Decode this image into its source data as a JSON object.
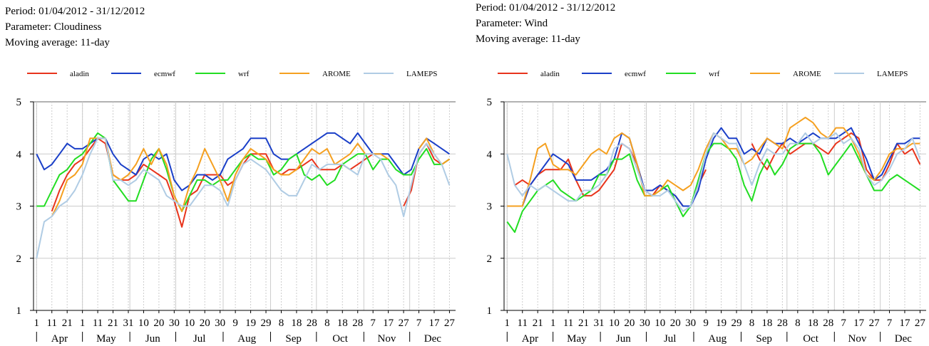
{
  "chart_data": [
    {
      "type": "line",
      "period": "Period: 01/04/2012 - 31/12/2012",
      "parameter": "Parameter: Cloudiness",
      "average": "Moving average: 11-day",
      "x": [
        "2012-04-01",
        "2012-04-06",
        "2012-04-11",
        "2012-04-16",
        "2012-04-21",
        "2012-04-26",
        "2012-05-01",
        "2012-05-06",
        "2012-05-11",
        "2012-05-16",
        "2012-05-21",
        "2012-05-26",
        "2012-05-31",
        "2012-06-05",
        "2012-06-10",
        "2012-06-15",
        "2012-06-20",
        "2012-06-25",
        "2012-06-30",
        "2012-07-05",
        "2012-07-10",
        "2012-07-15",
        "2012-07-20",
        "2012-07-25",
        "2012-07-30",
        "2012-08-04",
        "2012-08-09",
        "2012-08-14",
        "2012-08-19",
        "2012-08-24",
        "2012-08-29",
        "2012-09-03",
        "2012-09-08",
        "2012-09-13",
        "2012-09-18",
        "2012-09-23",
        "2012-09-28",
        "2012-10-03",
        "2012-10-08",
        "2012-10-13",
        "2012-10-18",
        "2012-10-23",
        "2012-10-28",
        "2012-11-02",
        "2012-11-07",
        "2012-11-12",
        "2012-11-17",
        "2012-11-22",
        "2012-11-27",
        "2012-12-02",
        "2012-12-07",
        "2012-12-12",
        "2012-12-17",
        "2012-12-22",
        "2012-12-27"
      ],
      "xlim": [
        "2012-03-30",
        "2012-12-31"
      ],
      "xticks": [
        {
          "value": "2012-04-01",
          "label": "1"
        },
        {
          "value": "2012-04-11",
          "label": "11"
        },
        {
          "value": "2012-04-21",
          "label": "21"
        },
        {
          "value": "2012-05-01",
          "label": "1"
        },
        {
          "value": "2012-05-11",
          "label": "11"
        },
        {
          "value": "2012-05-21",
          "label": "21"
        },
        {
          "value": "2012-05-31",
          "label": "31"
        },
        {
          "value": "2012-06-10",
          "label": "10"
        },
        {
          "value": "2012-06-20",
          "label": "20"
        },
        {
          "value": "2012-06-30",
          "label": "30"
        },
        {
          "value": "2012-07-10",
          "label": "10"
        },
        {
          "value": "2012-07-20",
          "label": "20"
        },
        {
          "value": "2012-07-30",
          "label": "30"
        },
        {
          "value": "2012-08-09",
          "label": "9"
        },
        {
          "value": "2012-08-19",
          "label": "19"
        },
        {
          "value": "2012-08-29",
          "label": "29"
        },
        {
          "value": "2012-09-08",
          "label": "8"
        },
        {
          "value": "2012-09-18",
          "label": "18"
        },
        {
          "value": "2012-09-28",
          "label": "28"
        },
        {
          "value": "2012-10-08",
          "label": "8"
        },
        {
          "value": "2012-10-18",
          "label": "18"
        },
        {
          "value": "2012-10-28",
          "label": "28"
        },
        {
          "value": "2012-11-07",
          "label": "7"
        },
        {
          "value": "2012-11-17",
          "label": "17"
        },
        {
          "value": "2012-11-27",
          "label": "27"
        },
        {
          "value": "2012-12-07",
          "label": "7"
        },
        {
          "value": "2012-12-17",
          "label": "17"
        },
        {
          "value": "2012-12-27",
          "label": "27"
        }
      ],
      "month_ticks": [
        {
          "value": "2012-04-01",
          "label": "Apr"
        },
        {
          "value": "2012-05-01",
          "label": "May"
        },
        {
          "value": "2012-06-01",
          "label": "Jun"
        },
        {
          "value": "2012-07-01",
          "label": "Jul"
        },
        {
          "value": "2012-08-01",
          "label": "Aug"
        },
        {
          "value": "2012-09-01",
          "label": "Sep"
        },
        {
          "value": "2012-10-01",
          "label": "Oct"
        },
        {
          "value": "2012-11-01",
          "label": "Nov"
        },
        {
          "value": "2012-12-01",
          "label": "Dec"
        }
      ],
      "ylim": [
        1,
        5
      ],
      "yticks": [
        1,
        2,
        3,
        4,
        5
      ],
      "grid": true,
      "series": [
        {
          "name": "aladin",
          "color": "#e8341c",
          "values": [
            null,
            null,
            2.9,
            3.3,
            3.6,
            3.8,
            3.9,
            4.1,
            4.3,
            4.2,
            3.6,
            3.5,
            3.5,
            3.6,
            3.8,
            3.7,
            3.6,
            3.5,
            3.1,
            2.6,
            3.2,
            3.3,
            3.6,
            3.6,
            3.6,
            3.4,
            3.5,
            3.8,
            4.0,
            4.0,
            4.0,
            3.7,
            3.6,
            3.7,
            3.7,
            3.8,
            3.9,
            3.7,
            3.7,
            3.7,
            3.8,
            3.7,
            3.8,
            3.9,
            4.0,
            null,
            null,
            null,
            3.0,
            3.3,
            4.0,
            4.2,
            3.9,
            3.8,
            3.9
          ]
        },
        {
          "name": "ecmwf",
          "color": "#1a3fc8",
          "values": [
            4.0,
            3.7,
            3.8,
            4.0,
            4.2,
            4.1,
            4.1,
            4.2,
            4.3,
            4.3,
            4.0,
            3.8,
            3.7,
            3.6,
            3.9,
            4.0,
            3.9,
            4.0,
            3.5,
            3.3,
            3.4,
            3.6,
            3.6,
            3.5,
            3.6,
            3.9,
            4.0,
            4.1,
            4.3,
            4.3,
            4.3,
            4.0,
            3.9,
            3.9,
            4.0,
            4.1,
            4.2,
            4.3,
            4.4,
            4.4,
            4.3,
            4.2,
            4.4,
            4.2,
            4.0,
            4.0,
            4.0,
            3.8,
            3.6,
            3.7,
            4.1,
            4.3,
            4.2,
            4.1,
            4.0
          ]
        },
        {
          "name": "wrf",
          "color": "#22dd22",
          "values": [
            3.0,
            3.0,
            3.3,
            3.6,
            3.7,
            3.9,
            4.0,
            4.2,
            4.4,
            4.3,
            3.5,
            3.3,
            3.1,
            3.1,
            3.5,
            3.9,
            4.1,
            3.7,
            3.2,
            2.9,
            3.2,
            3.5,
            3.5,
            3.4,
            3.5,
            3.5,
            3.7,
            3.9,
            4.0,
            3.9,
            3.9,
            3.6,
            3.7,
            3.9,
            4.0,
            3.6,
            3.5,
            3.6,
            3.4,
            3.5,
            3.8,
            3.9,
            4.0,
            4.0,
            3.7,
            3.9,
            3.9,
            3.7,
            3.6,
            3.6,
            3.9,
            4.1,
            3.8,
            3.8,
            3.9
          ]
        },
        {
          "name": "AROME",
          "color": "#f5a020",
          "values": [
            null,
            null,
            2.8,
            3.1,
            3.5,
            3.6,
            3.8,
            4.3,
            4.3,
            4.3,
            3.6,
            3.5,
            3.6,
            3.8,
            4.1,
            3.8,
            4.1,
            3.8,
            3.2,
            2.9,
            3.4,
            3.7,
            4.1,
            3.8,
            3.5,
            3.1,
            3.6,
            3.9,
            4.1,
            4.0,
            3.9,
            3.7,
            3.6,
            3.6,
            3.7,
            3.9,
            4.1,
            4.0,
            4.1,
            3.8,
            3.9,
            4.0,
            4.2,
            4.0,
            4.0,
            4.0,
            3.9,
            null,
            null,
            null,
            4.1,
            4.3,
            4.0,
            3.8,
            3.9
          ]
        },
        {
          "name": "LAMEPS",
          "color": "#b0cce4",
          "values": [
            2.0,
            2.7,
            2.8,
            3.0,
            3.1,
            3.3,
            3.6,
            4.0,
            4.3,
            4.3,
            3.5,
            3.5,
            3.4,
            3.5,
            3.7,
            3.6,
            3.5,
            3.2,
            3.1,
            3.0,
            3.0,
            3.2,
            3.4,
            3.4,
            3.3,
            3.0,
            3.5,
            3.8,
            3.9,
            3.8,
            3.7,
            3.5,
            3.3,
            3.2,
            3.2,
            3.5,
            3.8,
            3.7,
            3.8,
            3.8,
            3.8,
            3.7,
            3.6,
            4.0,
            4.0,
            3.9,
            3.6,
            3.4,
            2.8,
            3.4,
            4.0,
            4.2,
            4.0,
            3.8,
            3.4
          ]
        }
      ]
    },
    {
      "type": "line",
      "period": "Period: 01/04/2012 - 31/12/2012",
      "parameter": "Parameter: Wind",
      "average": "Moving average: 11-day",
      "x": [
        "2012-04-01",
        "2012-04-06",
        "2012-04-11",
        "2012-04-16",
        "2012-04-21",
        "2012-04-26",
        "2012-05-01",
        "2012-05-06",
        "2012-05-11",
        "2012-05-16",
        "2012-05-21",
        "2012-05-26",
        "2012-05-31",
        "2012-06-05",
        "2012-06-10",
        "2012-06-15",
        "2012-06-20",
        "2012-06-25",
        "2012-06-30",
        "2012-07-05",
        "2012-07-10",
        "2012-07-15",
        "2012-07-20",
        "2012-07-25",
        "2012-07-30",
        "2012-08-04",
        "2012-08-09",
        "2012-08-14",
        "2012-08-19",
        "2012-08-24",
        "2012-08-29",
        "2012-09-03",
        "2012-09-08",
        "2012-09-13",
        "2012-09-18",
        "2012-09-23",
        "2012-09-28",
        "2012-10-03",
        "2012-10-08",
        "2012-10-13",
        "2012-10-18",
        "2012-10-23",
        "2012-10-28",
        "2012-11-02",
        "2012-11-07",
        "2012-11-12",
        "2012-11-17",
        "2012-11-22",
        "2012-11-27",
        "2012-12-02",
        "2012-12-07",
        "2012-12-12",
        "2012-12-17",
        "2012-12-22",
        "2012-12-27"
      ],
      "xlim": [
        "2012-03-30",
        "2012-12-31"
      ],
      "xticks": [
        {
          "value": "2012-04-01",
          "label": "1"
        },
        {
          "value": "2012-04-11",
          "label": "11"
        },
        {
          "value": "2012-04-21",
          "label": "21"
        },
        {
          "value": "2012-05-01",
          "label": "1"
        },
        {
          "value": "2012-05-11",
          "label": "11"
        },
        {
          "value": "2012-05-21",
          "label": "21"
        },
        {
          "value": "2012-05-31",
          "label": "31"
        },
        {
          "value": "2012-06-10",
          "label": "10"
        },
        {
          "value": "2012-06-20",
          "label": "20"
        },
        {
          "value": "2012-06-30",
          "label": "30"
        },
        {
          "value": "2012-07-10",
          "label": "10"
        },
        {
          "value": "2012-07-20",
          "label": "20"
        },
        {
          "value": "2012-07-30",
          "label": "30"
        },
        {
          "value": "2012-08-09",
          "label": "9"
        },
        {
          "value": "2012-08-19",
          "label": "19"
        },
        {
          "value": "2012-08-29",
          "label": "29"
        },
        {
          "value": "2012-09-08",
          "label": "8"
        },
        {
          "value": "2012-09-18",
          "label": "18"
        },
        {
          "value": "2012-09-28",
          "label": "28"
        },
        {
          "value": "2012-10-08",
          "label": "8"
        },
        {
          "value": "2012-10-18",
          "label": "18"
        },
        {
          "value": "2012-10-28",
          "label": "28"
        },
        {
          "value": "2012-11-07",
          "label": "7"
        },
        {
          "value": "2012-11-17",
          "label": "17"
        },
        {
          "value": "2012-11-27",
          "label": "27"
        },
        {
          "value": "2012-12-07",
          "label": "7"
        },
        {
          "value": "2012-12-17",
          "label": "17"
        },
        {
          "value": "2012-12-27",
          "label": "27"
        }
      ],
      "month_ticks": [
        {
          "value": "2012-04-01",
          "label": "Apr"
        },
        {
          "value": "2012-05-01",
          "label": "May"
        },
        {
          "value": "2012-06-01",
          "label": "Jun"
        },
        {
          "value": "2012-07-01",
          "label": "Jul"
        },
        {
          "value": "2012-08-01",
          "label": "Aug"
        },
        {
          "value": "2012-09-01",
          "label": "Sep"
        },
        {
          "value": "2012-10-01",
          "label": "Oct"
        },
        {
          "value": "2012-11-01",
          "label": "Nov"
        },
        {
          "value": "2012-12-01",
          "label": "Dec"
        }
      ],
      "ylim": [
        1,
        5
      ],
      "yticks": [
        1,
        2,
        3,
        4,
        5
      ],
      "grid": true,
      "series": [
        {
          "name": "aladin",
          "color": "#e8341c",
          "values": [
            null,
            3.4,
            3.5,
            3.4,
            3.6,
            3.7,
            3.7,
            3.7,
            3.9,
            3.5,
            3.2,
            3.2,
            3.3,
            3.5,
            3.7,
            4.2,
            4.1,
            3.8,
            3.3,
            3.2,
            3.4,
            3.3,
            3.2,
            3.0,
            3.0,
            3.4,
            3.7,
            null,
            null,
            null,
            null,
            null,
            4.2,
            3.9,
            3.7,
            4.0,
            4.2,
            4.0,
            4.1,
            4.2,
            4.2,
            4.1,
            4.0,
            4.2,
            4.3,
            4.4,
            4.3,
            3.7,
            3.5,
            3.5,
            3.8,
            4.2,
            4.0,
            4.1,
            3.8
          ]
        },
        {
          "name": "ecmwf",
          "color": "#1a3fc8",
          "values": [
            null,
            3.0,
            3.0,
            3.4,
            3.6,
            3.8,
            4.0,
            3.9,
            3.8,
            3.5,
            3.5,
            3.5,
            3.6,
            3.7,
            3.9,
            4.4,
            4.3,
            3.8,
            3.3,
            3.3,
            3.4,
            3.3,
            3.2,
            3.0,
            3.0,
            3.3,
            3.9,
            4.3,
            4.5,
            4.3,
            4.3,
            4.0,
            4.1,
            4.0,
            4.3,
            4.2,
            4.2,
            4.3,
            4.2,
            4.3,
            4.4,
            4.3,
            4.3,
            4.3,
            4.4,
            4.5,
            4.2,
            3.9,
            3.5,
            3.6,
            3.9,
            4.2,
            4.2,
            4.3,
            4.3
          ]
        },
        {
          "name": "wrf",
          "color": "#22dd22",
          "values": [
            2.7,
            2.5,
            2.9,
            3.1,
            3.3,
            3.4,
            3.5,
            3.3,
            3.2,
            3.1,
            3.2,
            3.3,
            3.6,
            3.6,
            3.9,
            3.9,
            4.0,
            3.5,
            3.2,
            3.2,
            3.3,
            3.4,
            3.1,
            2.8,
            3.0,
            3.5,
            4.0,
            4.2,
            4.2,
            4.1,
            3.9,
            3.4,
            3.1,
            3.6,
            3.9,
            3.6,
            3.8,
            4.1,
            4.2,
            4.2,
            4.2,
            4.0,
            3.6,
            3.8,
            4.0,
            4.2,
            3.9,
            3.6,
            3.3,
            3.3,
            3.5,
            3.6,
            3.5,
            3.4,
            3.3
          ]
        },
        {
          "name": "AROME",
          "color": "#f5a020",
          "values": [
            3.0,
            3.0,
            3.0,
            3.5,
            4.1,
            4.2,
            3.8,
            3.7,
            3.7,
            3.6,
            3.8,
            4.0,
            4.1,
            4.0,
            4.3,
            4.4,
            4.3,
            3.8,
            3.2,
            3.2,
            3.3,
            3.5,
            3.4,
            3.3,
            3.4,
            3.7,
            4.1,
            4.4,
            4.3,
            4.1,
            4.1,
            3.8,
            3.9,
            4.1,
            4.3,
            4.2,
            4.1,
            4.5,
            4.6,
            4.7,
            4.6,
            4.4,
            4.3,
            4.5,
            4.5,
            4.3,
            4.0,
            3.6,
            3.5,
            3.7,
            4.0,
            4.1,
            4.1,
            4.2,
            4.2
          ]
        },
        {
          "name": "LAMEPS",
          "color": "#b0cce4",
          "values": [
            4.0,
            3.4,
            3.2,
            3.4,
            3.3,
            3.4,
            3.3,
            3.2,
            3.1,
            3.1,
            3.3,
            3.3,
            3.4,
            3.6,
            4.1,
            4.2,
            4.1,
            3.7,
            3.3,
            3.2,
            3.2,
            3.3,
            3.1,
            2.9,
            3.0,
            3.4,
            4.0,
            4.4,
            4.3,
            4.2,
            4.2,
            3.8,
            3.4,
            3.8,
            4.1,
            4.0,
            4.0,
            4.2,
            4.2,
            4.4,
            4.2,
            4.3,
            4.3,
            4.4,
            4.2,
            4.3,
            4.1,
            3.6,
            3.4,
            3.5,
            3.7,
            4.0,
            4.1,
            4.3,
            3.9
          ]
        }
      ]
    }
  ]
}
